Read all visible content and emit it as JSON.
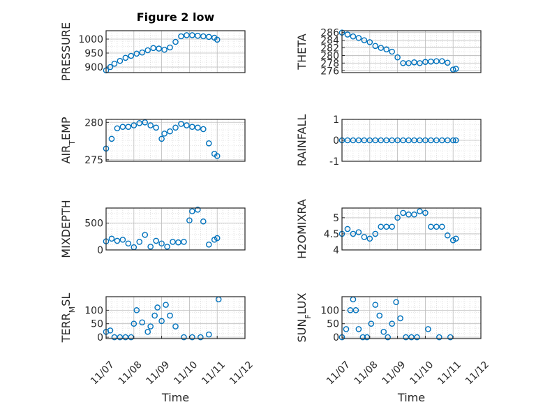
{
  "figure_title": "Figure 2 low",
  "marker_color": "#0072BD",
  "chart_data": [
    {
      "type": "scatter",
      "ylabel": "PRESSURE",
      "xlabel": "",
      "title": "Figure 2 low",
      "ylim": [
        880,
        1030
      ],
      "yticks": [
        900,
        950,
        1000
      ],
      "ytick_labels": [
        "900",
        "950",
        "1000"
      ],
      "grid": true,
      "x": [
        0.0,
        0.15,
        0.3,
        0.5,
        0.7,
        0.9,
        1.1,
        1.3,
        1.5,
        1.7,
        1.9,
        2.1,
        2.3,
        2.5,
        2.7,
        2.9,
        3.1,
        3.3,
        3.5,
        3.7,
        3.9,
        4.0
      ],
      "y": [
        888,
        900,
        912,
        922,
        933,
        940,
        948,
        952,
        960,
        968,
        966,
        962,
        970,
        990,
        1010,
        1014,
        1014,
        1012,
        1010,
        1008,
        1005,
        998
      ]
    },
    {
      "type": "scatter",
      "ylabel": "THETA",
      "xlabel": "",
      "title": "",
      "ylim": [
        275.5,
        286.5
      ],
      "yticks": [
        276,
        278,
        280,
        282,
        284,
        286
      ],
      "ytick_labels": [
        "276",
        "278",
        "280",
        "282",
        "284",
        "286"
      ],
      "grid": true,
      "x": [
        0.0,
        0.2,
        0.4,
        0.6,
        0.8,
        1.0,
        1.2,
        1.4,
        1.6,
        1.8,
        2.0,
        2.2,
        2.4,
        2.6,
        2.8,
        3.0,
        3.2,
        3.4,
        3.6,
        3.8,
        4.0,
        4.1
      ],
      "y": [
        286,
        285.5,
        285,
        284.6,
        284,
        283.5,
        282.5,
        282,
        281.6,
        281,
        279.5,
        278,
        278,
        278.2,
        278,
        278.3,
        278.4,
        278.5,
        278.5,
        278.1,
        276.3,
        276.5
      ]
    },
    {
      "type": "scatter",
      "ylabel": "AIR_TEMP",
      "xlabel": "",
      "title": "",
      "ylim": [
        274.8,
        280.4
      ],
      "yticks": [
        275,
        280
      ],
      "ytick_labels": [
        "275",
        "280"
      ],
      "grid": true,
      "x": [
        0.0,
        0.2,
        0.4,
        0.6,
        0.8,
        1.0,
        1.2,
        1.4,
        1.6,
        1.8,
        2.0,
        2.1,
        2.3,
        2.5,
        2.7,
        2.9,
        3.1,
        3.3,
        3.5,
        3.7,
        3.9,
        4.0
      ],
      "y": [
        276.5,
        277.8,
        279.2,
        279.4,
        279.4,
        279.6,
        279.9,
        280.0,
        279.6,
        279.3,
        277.8,
        278.5,
        278.8,
        279.3,
        279.8,
        279.6,
        279.4,
        279.3,
        279.1,
        277.2,
        275.8,
        275.5
      ]
    },
    {
      "type": "scatter",
      "ylabel": "RAINFALL",
      "xlabel": "",
      "title": "",
      "ylim": [
        -1,
        1
      ],
      "yticks": [
        -1,
        0,
        1
      ],
      "ytick_labels": [
        "-1",
        "0",
        "1"
      ],
      "grid": true,
      "x": [
        0.0,
        0.2,
        0.4,
        0.6,
        0.8,
        1.0,
        1.2,
        1.4,
        1.6,
        1.8,
        2.0,
        2.2,
        2.4,
        2.6,
        2.8,
        3.0,
        3.2,
        3.4,
        3.6,
        3.8,
        4.0,
        4.1
      ],
      "y": [
        0,
        0,
        0,
        0,
        0,
        0,
        0,
        0,
        0,
        0,
        0,
        0,
        0,
        0,
        0,
        0,
        0,
        0,
        0,
        0,
        0,
        0
      ]
    },
    {
      "type": "scatter",
      "ylabel": "MIXDEPTH",
      "xlabel": "",
      "title": "",
      "ylim": [
        0,
        780
      ],
      "yticks": [
        0,
        500
      ],
      "ytick_labels": [
        "0",
        "500"
      ],
      "grid": true,
      "x": [
        0.0,
        0.2,
        0.4,
        0.6,
        0.8,
        1.0,
        1.2,
        1.4,
        1.6,
        1.8,
        2.0,
        2.2,
        2.4,
        2.6,
        2.8,
        3.0,
        3.1,
        3.3,
        3.5,
        3.7,
        3.9,
        4.0
      ],
      "y": [
        160,
        210,
        170,
        190,
        120,
        50,
        150,
        280,
        60,
        170,
        120,
        60,
        150,
        140,
        150,
        550,
        720,
        750,
        530,
        100,
        190,
        220
      ]
    },
    {
      "type": "scatter",
      "ylabel": "H2OMIXRA",
      "xlabel": "",
      "title": "",
      "ylim": [
        4,
        5.3
      ],
      "yticks": [
        4,
        4.5,
        5
      ],
      "ytick_labels": [
        "4",
        "4.5",
        "5"
      ],
      "grid": true,
      "x": [
        0.0,
        0.2,
        0.4,
        0.6,
        0.8,
        1.0,
        1.2,
        1.4,
        1.6,
        1.8,
        2.0,
        2.2,
        2.4,
        2.6,
        2.8,
        3.0,
        3.2,
        3.4,
        3.6,
        3.8,
        4.0,
        4.1
      ],
      "y": [
        4.5,
        4.65,
        4.5,
        4.55,
        4.4,
        4.35,
        4.5,
        4.72,
        4.72,
        4.72,
        5.0,
        5.15,
        5.1,
        5.1,
        5.2,
        5.15,
        4.72,
        4.72,
        4.72,
        4.45,
        4.3,
        4.35
      ]
    },
    {
      "type": "scatter",
      "ylabel": "TERR_MSL",
      "xlabel": "Time",
      "title": "",
      "ylim": [
        -5,
        150
      ],
      "yticks": [
        0,
        50,
        100
      ],
      "ytick_labels": [
        "0",
        "50",
        "100"
      ],
      "grid": true,
      "xticks": [
        0,
        1,
        2,
        3,
        4,
        5
      ],
      "xtick_labels": [
        "11/07",
        "11/08",
        "11/09",
        "11/10",
        "11/11",
        "11/12"
      ],
      "x": [
        0.0,
        0.15,
        0.3,
        0.5,
        0.7,
        0.9,
        1.0,
        1.1,
        1.3,
        1.5,
        1.6,
        1.75,
        1.85,
        2.0,
        2.15,
        2.3,
        2.5,
        2.8,
        3.1,
        3.4,
        3.7,
        4.05
      ],
      "y": [
        20,
        25,
        0,
        0,
        0,
        0,
        50,
        100,
        55,
        20,
        40,
        80,
        110,
        60,
        120,
        80,
        40,
        0,
        0,
        0,
        10,
        140
      ]
    },
    {
      "type": "scatter",
      "ylabel": "SUN_FLUX",
      "xlabel": "Time",
      "title": "",
      "ylim": [
        -5,
        150
      ],
      "yticks": [
        0,
        50,
        100
      ],
      "ytick_labels": [
        "0",
        "50",
        "100"
      ],
      "grid": true,
      "xticks": [
        0,
        1,
        2,
        3,
        4,
        5
      ],
      "xtick_labels": [
        "11/07",
        "11/08",
        "11/09",
        "11/10",
        "11/11",
        "11/12"
      ],
      "x": [
        0.0,
        0.15,
        0.3,
        0.4,
        0.5,
        0.6,
        0.75,
        0.9,
        1.05,
        1.2,
        1.35,
        1.5,
        1.65,
        1.8,
        1.95,
        2.1,
        2.3,
        2.5,
        2.7,
        3.1,
        3.5,
        3.9
      ],
      "y": [
        0,
        30,
        100,
        140,
        100,
        30,
        0,
        0,
        50,
        120,
        80,
        20,
        0,
        50,
        130,
        70,
        0,
        0,
        0,
        30,
        0,
        0
      ]
    }
  ]
}
